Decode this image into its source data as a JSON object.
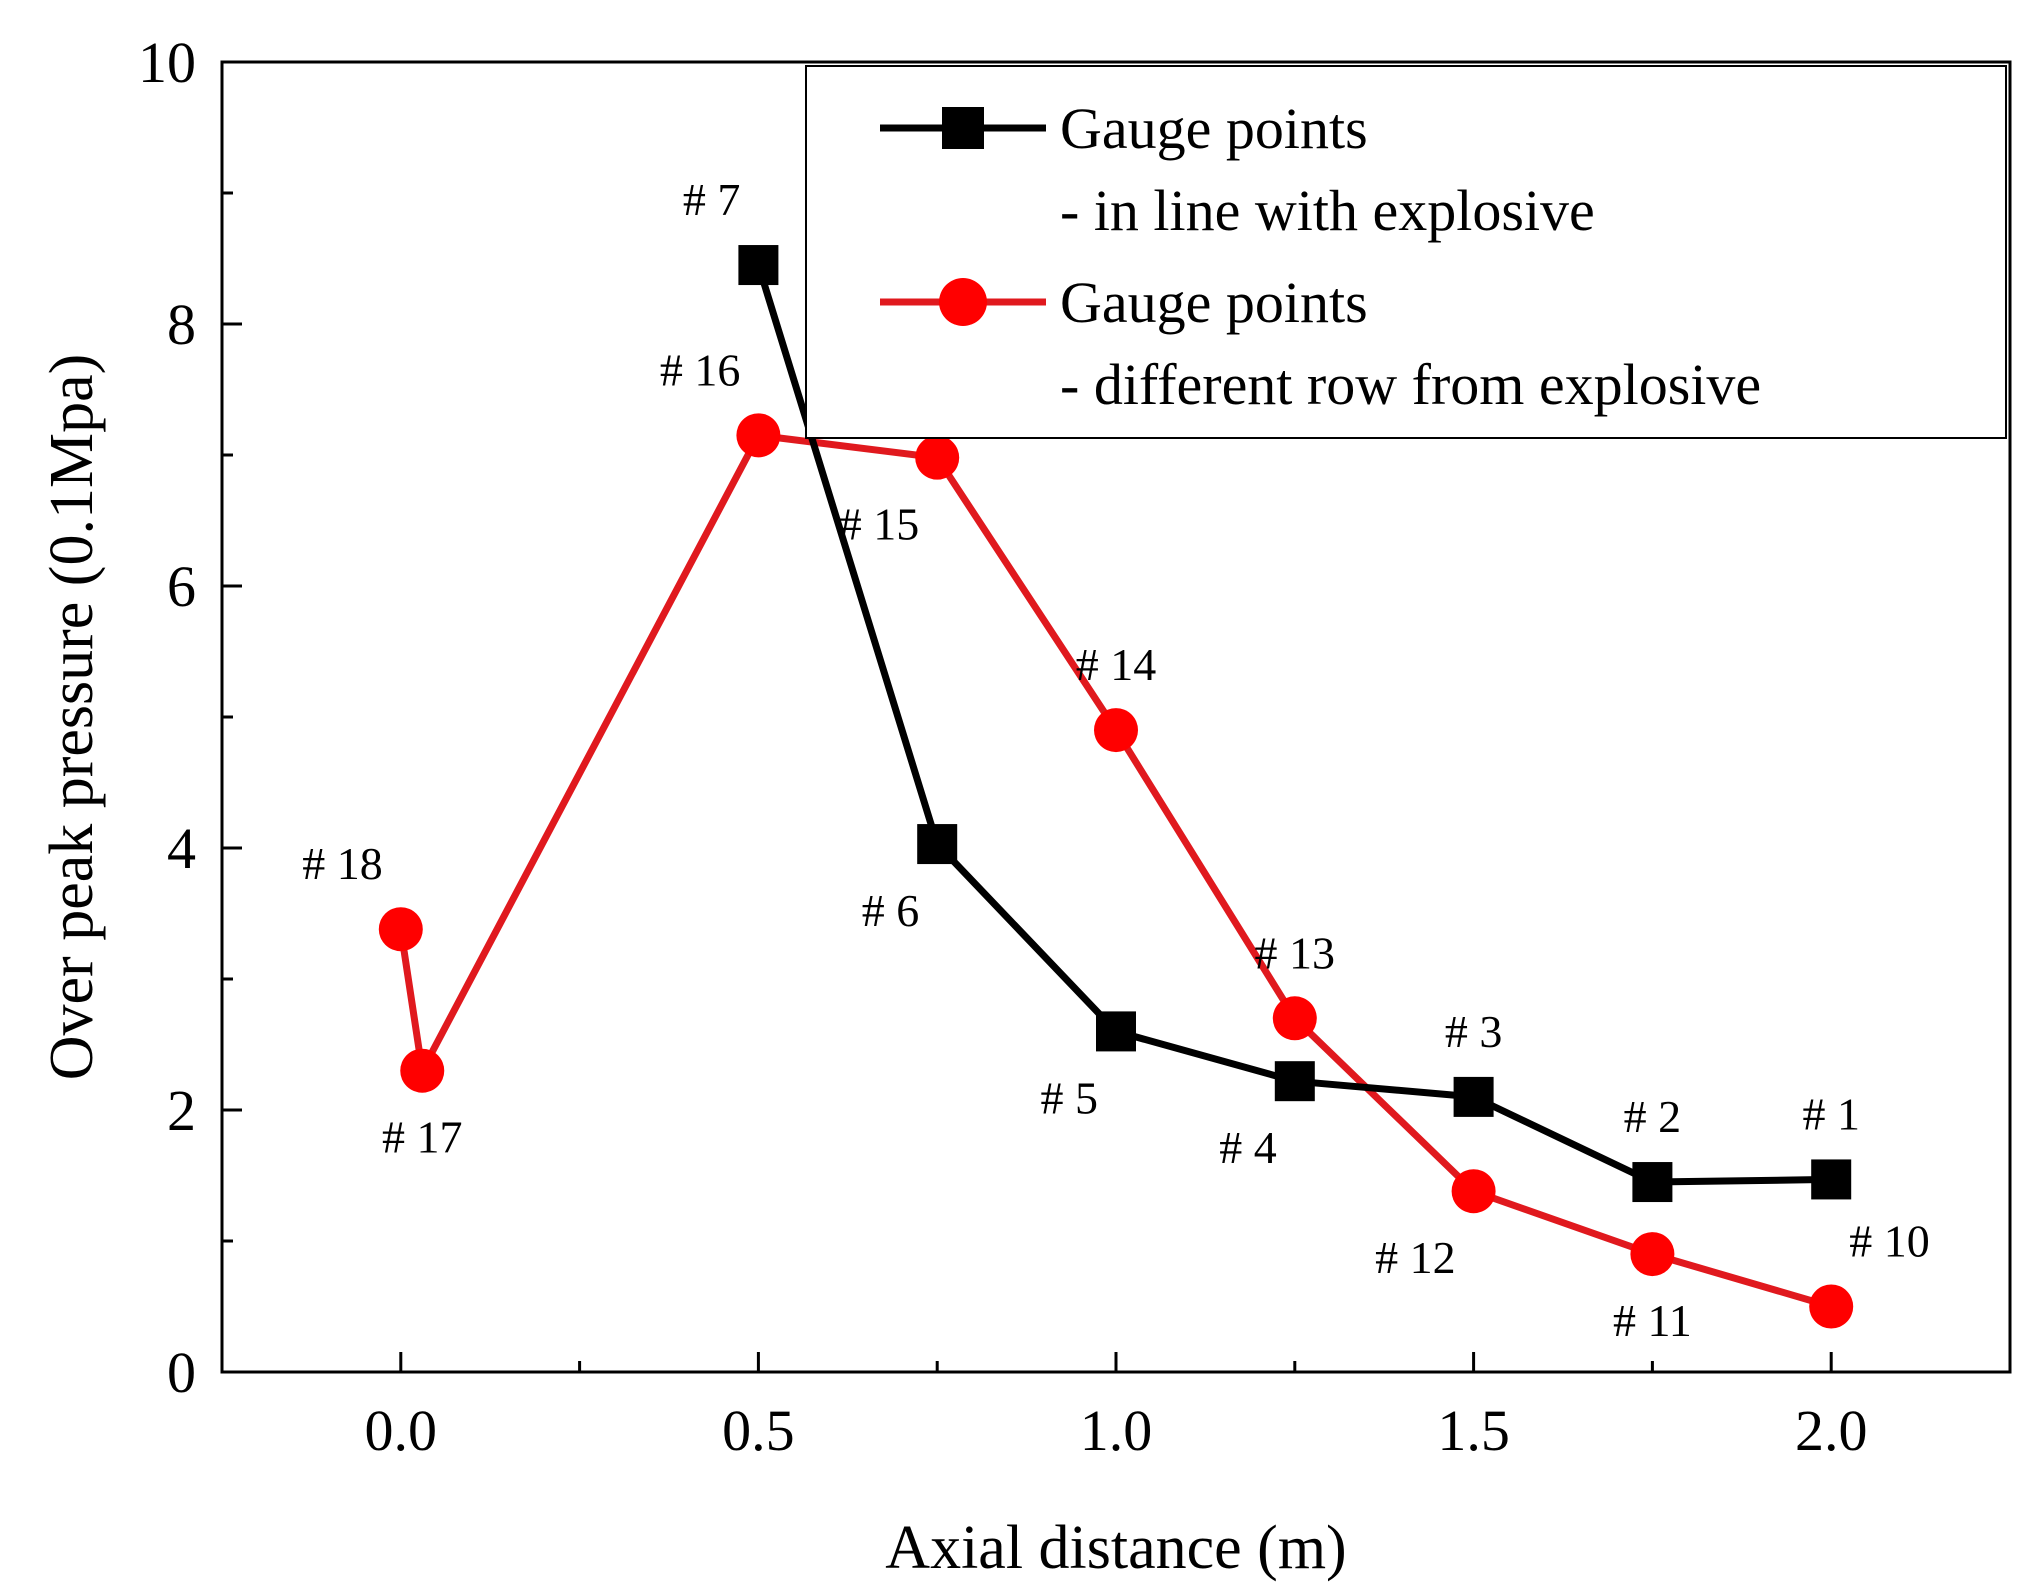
{
  "chart_data": {
    "type": "line",
    "title": "",
    "xlabel": "Axial distance (m)",
    "ylabel": "Over peak pressure (0.1Mpa)",
    "xlim": [
      -0.25,
      2.25
    ],
    "ylim": [
      0,
      10
    ],
    "xticks": [
      0.0,
      0.5,
      1.0,
      1.5,
      2.0
    ],
    "xtick_labels": [
      "0.0",
      "0.5",
      "1.0",
      "1.5",
      "2.0"
    ],
    "yticks": [
      0,
      2,
      4,
      6,
      8,
      10
    ],
    "ytick_labels": [
      "0",
      "2",
      "4",
      "6",
      "8",
      "10"
    ],
    "grid": false,
    "legend_position": "top-right",
    "series": [
      {
        "name": "Gauge points - in line with explosive",
        "legend_lines": [
          "Gauge points",
          "- in line with explosive"
        ],
        "color": "#000000",
        "marker": "square",
        "x": [
          0.5,
          0.75,
          1.0,
          1.25,
          1.5,
          1.75,
          2.0
        ],
        "y": [
          8.45,
          4.03,
          2.6,
          2.22,
          2.1,
          1.45,
          1.47
        ],
        "labels": [
          "# 7",
          "# 6",
          "# 5",
          "# 4",
          "# 3",
          "# 2",
          "# 1"
        ],
        "label_positions": [
          "above-left",
          "below-left",
          "below-left",
          "below-left",
          "above",
          "above",
          "above"
        ]
      },
      {
        "name": "Gauge points - different row from explosive",
        "legend_lines": [
          "Gauge points",
          "- different row from explosive"
        ],
        "color": "#ff0000",
        "line_color": "#e0191e",
        "marker": "circle",
        "x": [
          0.0,
          0.03,
          0.5,
          0.75,
          1.0,
          1.25,
          1.5,
          1.75,
          2.0
        ],
        "y": [
          3.38,
          2.3,
          7.15,
          6.98,
          4.9,
          2.7,
          1.38,
          0.9,
          0.5
        ],
        "labels": [
          "# 18",
          "# 17",
          "# 16",
          "# 15",
          "# 14",
          "# 13",
          "# 12",
          "# 11",
          "# 10"
        ],
        "label_positions": [
          "above-left",
          "below",
          "above-left",
          "below-left",
          "above",
          "above",
          "below-left",
          "below",
          "above-right"
        ]
      }
    ]
  }
}
